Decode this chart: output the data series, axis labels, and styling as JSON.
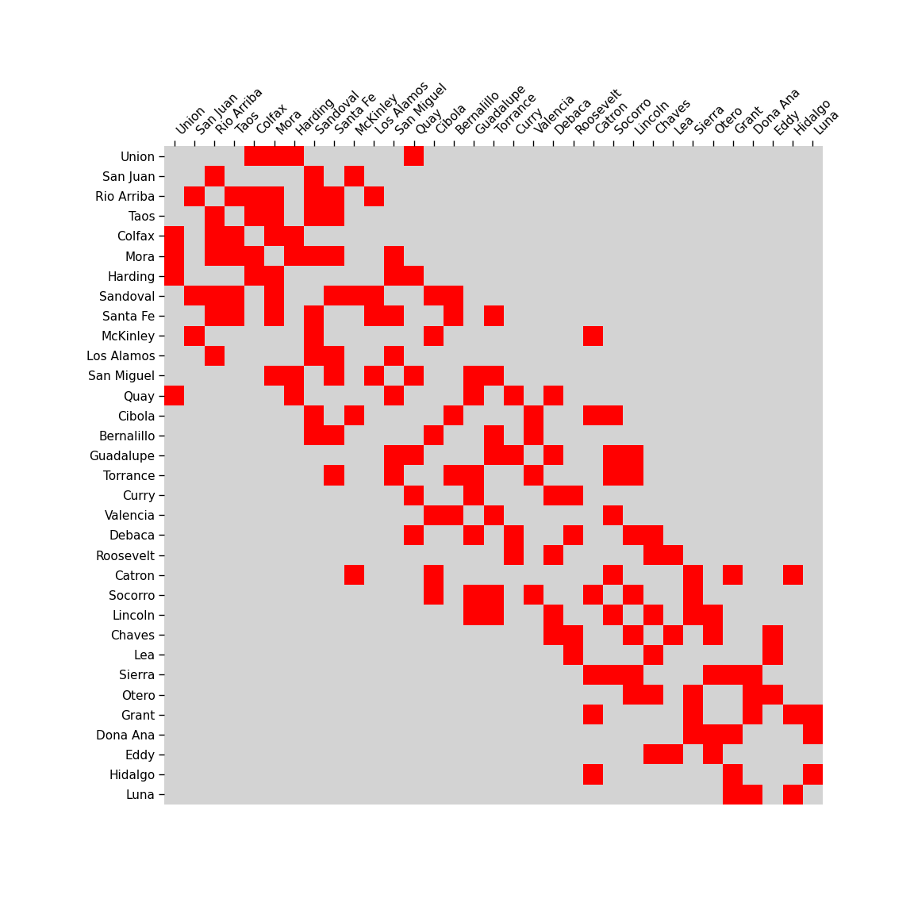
{
  "counties": [
    "Union",
    "San Juan",
    "Rio Arriba",
    "Taos",
    "Colfax",
    "Mora",
    "Harding",
    "Sandoval",
    "Santa Fe",
    "McKinley",
    "Los Alamos",
    "San Miguel",
    "Quay",
    "Cibola",
    "Bernalillo",
    "Guadalupe",
    "Torrance",
    "Curry",
    "Valencia",
    "Debaca",
    "Roosevelt",
    "Catron",
    "Socorro",
    "Lincoln",
    "Chaves",
    "Lea",
    "Sierra",
    "Otero",
    "Grant",
    "Dona Ana",
    "Eddy",
    "Hidalgo",
    "Luna"
  ],
  "adjacency": [
    [
      "Union",
      "Colfax"
    ],
    [
      "Union",
      "Mora"
    ],
    [
      "Union",
      "Harding"
    ],
    [
      "Union",
      "Quay"
    ],
    [
      "San Juan",
      "Rio Arriba"
    ],
    [
      "San Juan",
      "McKinley"
    ],
    [
      "San Juan",
      "Sandoval"
    ],
    [
      "Rio Arriba",
      "Taos"
    ],
    [
      "Rio Arriba",
      "Colfax"
    ],
    [
      "Rio Arriba",
      "Mora"
    ],
    [
      "Rio Arriba",
      "Sandoval"
    ],
    [
      "Rio Arriba",
      "Santa Fe"
    ],
    [
      "Rio Arriba",
      "Los Alamos"
    ],
    [
      "Taos",
      "Colfax"
    ],
    [
      "Taos",
      "Mora"
    ],
    [
      "Taos",
      "Sandoval"
    ],
    [
      "Taos",
      "Santa Fe"
    ],
    [
      "Colfax",
      "Mora"
    ],
    [
      "Colfax",
      "Harding"
    ],
    [
      "Mora",
      "Harding"
    ],
    [
      "Mora",
      "Sandoval"
    ],
    [
      "Mora",
      "Santa Fe"
    ],
    [
      "Mora",
      "San Miguel"
    ],
    [
      "Harding",
      "Quay"
    ],
    [
      "Harding",
      "San Miguel"
    ],
    [
      "Sandoval",
      "Santa Fe"
    ],
    [
      "Sandoval",
      "Los Alamos"
    ],
    [
      "Sandoval",
      "Bernalillo"
    ],
    [
      "Sandoval",
      "McKinley"
    ],
    [
      "Sandoval",
      "Cibola"
    ],
    [
      "Santa Fe",
      "Los Alamos"
    ],
    [
      "Santa Fe",
      "San Miguel"
    ],
    [
      "Santa Fe",
      "Bernalillo"
    ],
    [
      "Santa Fe",
      "Torrance"
    ],
    [
      "McKinley",
      "Cibola"
    ],
    [
      "McKinley",
      "Catron"
    ],
    [
      "Los Alamos",
      "San Miguel"
    ],
    [
      "San Miguel",
      "Quay"
    ],
    [
      "San Miguel",
      "Guadalupe"
    ],
    [
      "San Miguel",
      "Torrance"
    ],
    [
      "Quay",
      "Curry"
    ],
    [
      "Quay",
      "Guadalupe"
    ],
    [
      "Quay",
      "Debaca"
    ],
    [
      "Cibola",
      "Bernalillo"
    ],
    [
      "Cibola",
      "Valencia"
    ],
    [
      "Cibola",
      "Catron"
    ],
    [
      "Cibola",
      "Socorro"
    ],
    [
      "Bernalillo",
      "Torrance"
    ],
    [
      "Bernalillo",
      "Valencia"
    ],
    [
      "Guadalupe",
      "Torrance"
    ],
    [
      "Guadalupe",
      "Curry"
    ],
    [
      "Guadalupe",
      "Debaca"
    ],
    [
      "Guadalupe",
      "Lincoln"
    ],
    [
      "Guadalupe",
      "Socorro"
    ],
    [
      "Torrance",
      "Valencia"
    ],
    [
      "Torrance",
      "Lincoln"
    ],
    [
      "Torrance",
      "Socorro"
    ],
    [
      "Curry",
      "Debaca"
    ],
    [
      "Curry",
      "Roosevelt"
    ],
    [
      "Valencia",
      "Socorro"
    ],
    [
      "Debaca",
      "Roosevelt"
    ],
    [
      "Debaca",
      "Lincoln"
    ],
    [
      "Debaca",
      "Chaves"
    ],
    [
      "Roosevelt",
      "Chaves"
    ],
    [
      "Roosevelt",
      "Lea"
    ],
    [
      "Catron",
      "Socorro"
    ],
    [
      "Catron",
      "Sierra"
    ],
    [
      "Catron",
      "Grant"
    ],
    [
      "Catron",
      "Hidalgo"
    ],
    [
      "Socorro",
      "Lincoln"
    ],
    [
      "Socorro",
      "Sierra"
    ],
    [
      "Lincoln",
      "Chaves"
    ],
    [
      "Lincoln",
      "Otero"
    ],
    [
      "Lincoln",
      "Sierra"
    ],
    [
      "Chaves",
      "Lea"
    ],
    [
      "Chaves",
      "Eddy"
    ],
    [
      "Chaves",
      "Otero"
    ],
    [
      "Lea",
      "Eddy"
    ],
    [
      "Sierra",
      "Otero"
    ],
    [
      "Sierra",
      "Grant"
    ],
    [
      "Sierra",
      "Dona Ana"
    ],
    [
      "Otero",
      "Dona Ana"
    ],
    [
      "Otero",
      "Eddy"
    ],
    [
      "Grant",
      "Dona Ana"
    ],
    [
      "Grant",
      "Hidalgo"
    ],
    [
      "Dona Ana",
      "Luna"
    ],
    [
      "Hidalgo",
      "Luna"
    ],
    [
      "Luna",
      "Grant"
    ]
  ],
  "bg_color": "#d3d3d3",
  "fill_color": "#ff0000",
  "label_fontsize": 11,
  "figsize": [
    11.52,
    11.52
  ],
  "dpi": 100
}
